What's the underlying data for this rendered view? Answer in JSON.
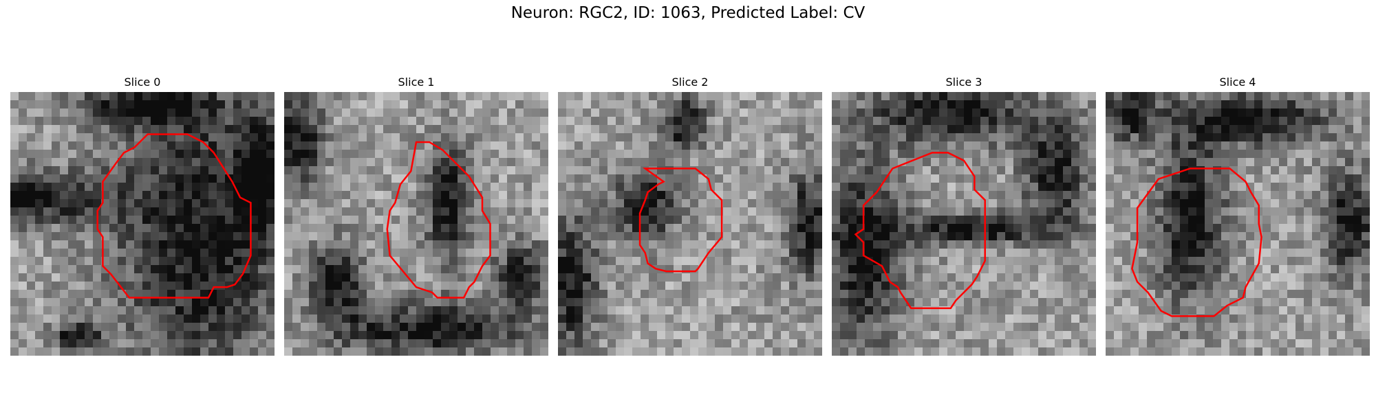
{
  "figure": {
    "title": "Neuron: RGC2, ID: 1063, Predicted Label: CV",
    "contour_color": "#ff0000"
  },
  "panels": [
    {
      "title": "Slice 0",
      "dark": [
        [
          0.72,
          0.55,
          0.32,
          0.55
        ],
        [
          0.05,
          0.4,
          0.32,
          0.1
        ],
        [
          0.25,
          0.93,
          0.1,
          0.05
        ],
        [
          0.5,
          0.05,
          0.25,
          0.08
        ],
        [
          0.95,
          0.3,
          0.08,
          0.2
        ]
      ],
      "contour": [
        [
          0.52,
          0.16
        ],
        [
          0.67,
          0.16
        ],
        [
          0.73,
          0.19
        ],
        [
          0.77,
          0.23
        ],
        [
          0.84,
          0.34
        ],
        [
          0.87,
          0.4
        ],
        [
          0.91,
          0.42
        ],
        [
          0.91,
          0.62
        ],
        [
          0.88,
          0.69
        ],
        [
          0.85,
          0.73
        ],
        [
          0.82,
          0.74
        ],
        [
          0.77,
          0.74
        ],
        [
          0.75,
          0.78
        ],
        [
          0.45,
          0.78
        ],
        [
          0.38,
          0.69
        ],
        [
          0.35,
          0.66
        ],
        [
          0.35,
          0.55
        ],
        [
          0.33,
          0.52
        ],
        [
          0.33,
          0.45
        ],
        [
          0.35,
          0.42
        ],
        [
          0.35,
          0.34
        ],
        [
          0.4,
          0.27
        ],
        [
          0.43,
          0.23
        ],
        [
          0.47,
          0.21
        ]
      ]
    },
    {
      "title": "Slice 1",
      "dark": [
        [
          0.05,
          0.18,
          0.1,
          0.18
        ],
        [
          0.55,
          0.9,
          0.35,
          0.1
        ],
        [
          0.62,
          0.42,
          0.08,
          0.22
        ],
        [
          0.2,
          0.72,
          0.1,
          0.15
        ],
        [
          0.9,
          0.7,
          0.1,
          0.12
        ]
      ],
      "contour": [
        [
          0.5,
          0.19
        ],
        [
          0.55,
          0.19
        ],
        [
          0.6,
          0.22
        ],
        [
          0.63,
          0.25
        ],
        [
          0.7,
          0.32
        ],
        [
          0.75,
          0.4
        ],
        [
          0.75,
          0.45
        ],
        [
          0.78,
          0.5
        ],
        [
          0.78,
          0.62
        ],
        [
          0.75,
          0.66
        ],
        [
          0.72,
          0.72
        ],
        [
          0.7,
          0.74
        ],
        [
          0.68,
          0.78
        ],
        [
          0.58,
          0.78
        ],
        [
          0.56,
          0.76
        ],
        [
          0.5,
          0.74
        ],
        [
          0.45,
          0.68
        ],
        [
          0.4,
          0.62
        ],
        [
          0.39,
          0.52
        ],
        [
          0.4,
          0.45
        ],
        [
          0.42,
          0.42
        ],
        [
          0.44,
          0.35
        ],
        [
          0.48,
          0.3
        ]
      ]
    },
    {
      "title": "Slice 2",
      "dark": [
        [
          0.33,
          0.43,
          0.12,
          0.14
        ],
        [
          0.05,
          0.72,
          0.1,
          0.25
        ],
        [
          0.48,
          0.12,
          0.08,
          0.1
        ],
        [
          0.95,
          0.5,
          0.08,
          0.2
        ]
      ],
      "contour": [
        [
          0.33,
          0.29
        ],
        [
          0.52,
          0.29
        ],
        [
          0.57,
          0.33
        ],
        [
          0.58,
          0.37
        ],
        [
          0.62,
          0.41
        ],
        [
          0.62,
          0.55
        ],
        [
          0.57,
          0.61
        ],
        [
          0.53,
          0.67
        ],
        [
          0.52,
          0.68
        ],
        [
          0.41,
          0.68
        ],
        [
          0.37,
          0.67
        ],
        [
          0.34,
          0.65
        ],
        [
          0.33,
          0.61
        ],
        [
          0.31,
          0.58
        ],
        [
          0.31,
          0.46
        ],
        [
          0.33,
          0.41
        ],
        [
          0.34,
          0.38
        ],
        [
          0.38,
          0.35
        ],
        [
          0.4,
          0.34
        ]
      ]
    },
    {
      "title": "Slice 3",
      "dark": [
        [
          0.12,
          0.6,
          0.15,
          0.35
        ],
        [
          0.45,
          0.08,
          0.3,
          0.12
        ],
        [
          0.85,
          0.3,
          0.12,
          0.2
        ],
        [
          0.55,
          0.52,
          0.3,
          0.06
        ]
      ],
      "contour": [
        [
          0.38,
          0.23
        ],
        [
          0.44,
          0.23
        ],
        [
          0.5,
          0.26
        ],
        [
          0.52,
          0.29
        ],
        [
          0.54,
          0.32
        ],
        [
          0.54,
          0.37
        ],
        [
          0.58,
          0.41
        ],
        [
          0.58,
          0.64
        ],
        [
          0.55,
          0.7
        ],
        [
          0.53,
          0.73
        ],
        [
          0.47,
          0.79
        ],
        [
          0.45,
          0.82
        ],
        [
          0.3,
          0.82
        ],
        [
          0.26,
          0.76
        ],
        [
          0.25,
          0.74
        ],
        [
          0.22,
          0.72
        ],
        [
          0.19,
          0.66
        ],
        [
          0.12,
          0.62
        ],
        [
          0.12,
          0.57
        ],
        [
          0.09,
          0.54
        ],
        [
          0.12,
          0.52
        ],
        [
          0.12,
          0.43
        ],
        [
          0.17,
          0.38
        ],
        [
          0.23,
          0.29
        ]
      ]
    },
    {
      "title": "Slice 4",
      "dark": [
        [
          0.32,
          0.48,
          0.13,
          0.32
        ],
        [
          0.55,
          0.1,
          0.3,
          0.1
        ],
        [
          0.08,
          0.08,
          0.1,
          0.1
        ],
        [
          0.92,
          0.5,
          0.1,
          0.2
        ]
      ],
      "contour": [
        [
          0.32,
          0.29
        ],
        [
          0.47,
          0.29
        ],
        [
          0.53,
          0.34
        ],
        [
          0.55,
          0.38
        ],
        [
          0.58,
          0.43
        ],
        [
          0.58,
          0.5
        ],
        [
          0.59,
          0.55
        ],
        [
          0.58,
          0.65
        ],
        [
          0.53,
          0.74
        ],
        [
          0.52,
          0.78
        ],
        [
          0.46,
          0.81
        ],
        [
          0.41,
          0.85
        ],
        [
          0.25,
          0.85
        ],
        [
          0.21,
          0.83
        ],
        [
          0.16,
          0.76
        ],
        [
          0.12,
          0.72
        ],
        [
          0.1,
          0.67
        ],
        [
          0.12,
          0.57
        ],
        [
          0.12,
          0.44
        ],
        [
          0.2,
          0.33
        ]
      ]
    }
  ]
}
